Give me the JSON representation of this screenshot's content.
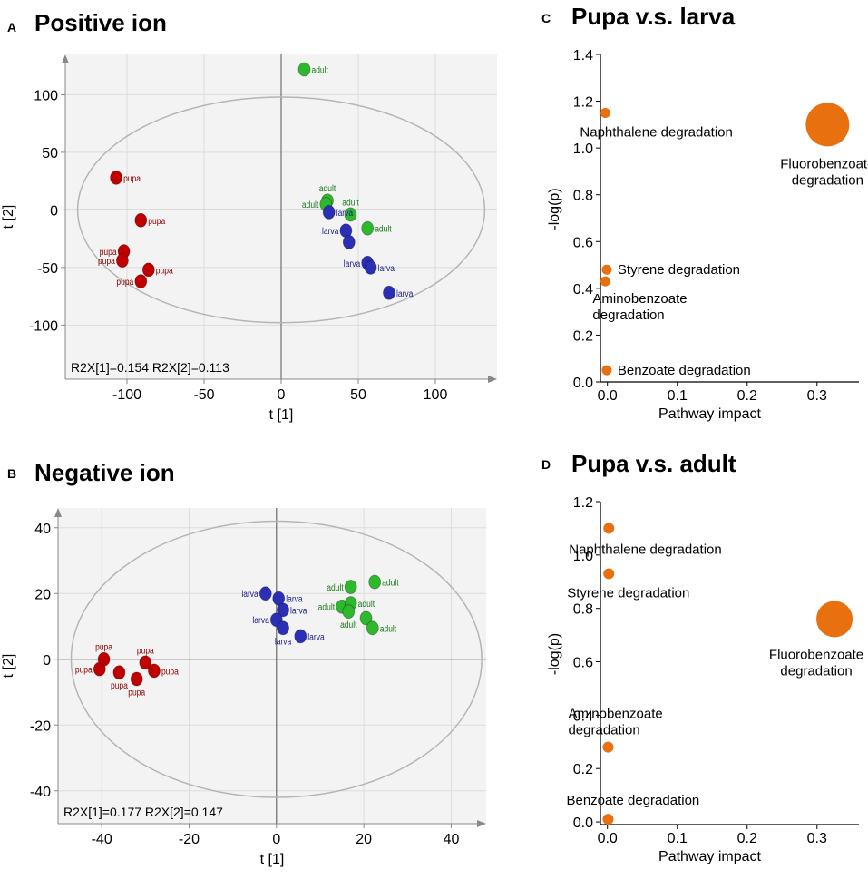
{
  "panels": {
    "a": {
      "letter": "A",
      "title": "Positive ion"
    },
    "b": {
      "letter": "B",
      "title": "Negative ion"
    },
    "c": {
      "letter": "C",
      "title": "Pupa v.s. larva"
    },
    "d": {
      "letter": "D",
      "title": "Pupa v.s. adult"
    }
  },
  "colors": {
    "pupa": "#c00000",
    "larva": "#2b2fb5",
    "adult": "#2db82d",
    "pathway": "#e8700e",
    "pupa_label": "#8b0000",
    "larva_label": "#1c1c88",
    "adult_label": "#1a7a1a"
  },
  "chart_data": [
    {
      "id": "a",
      "type": "scatter",
      "title": "Positive ion",
      "xlabel": "t [1]",
      "ylabel": "t [2]",
      "xlim": [
        -140,
        140
      ],
      "ylim": [
        -147,
        135
      ],
      "xticks": [
        -100,
        -50,
        0,
        50,
        100
      ],
      "yticks": [
        -100,
        -50,
        0,
        50,
        100
      ],
      "ellipse": {
        "rx": 132,
        "ry": 98
      },
      "annotation": "R2X[1]=0.154   R2X[2]=0.113",
      "points": [
        {
          "x": 15,
          "y": 122,
          "group": "adult",
          "label": "adult",
          "pos": "r"
        },
        {
          "x": 30,
          "y": 8,
          "group": "adult",
          "label": "adult",
          "pos": "t"
        },
        {
          "x": 29,
          "y": 5,
          "group": "adult",
          "label": "adult",
          "pos": "l"
        },
        {
          "x": 45,
          "y": -4,
          "group": "adult",
          "label": "adult",
          "pos": "t"
        },
        {
          "x": 56,
          "y": -16,
          "group": "adult",
          "label": "adult",
          "pos": "r"
        },
        {
          "x": 31,
          "y": -2,
          "group": "larva",
          "label": "larva",
          "pos": "r"
        },
        {
          "x": 42,
          "y": -18,
          "group": "larva",
          "label": "larva",
          "pos": "l"
        },
        {
          "x": 44,
          "y": -28,
          "group": "larva",
          "label": "",
          "pos": "l"
        },
        {
          "x": 56,
          "y": -46,
          "group": "larva",
          "label": "larva",
          "pos": "l"
        },
        {
          "x": 58,
          "y": -50,
          "group": "larva",
          "label": "larva",
          "pos": "r"
        },
        {
          "x": 70,
          "y": -72,
          "group": "larva",
          "label": "larva",
          "pos": "r"
        },
        {
          "x": -107,
          "y": 28,
          "group": "pupa",
          "label": "pupa",
          "pos": "r"
        },
        {
          "x": -91,
          "y": -9,
          "group": "pupa",
          "label": "pupa",
          "pos": "r"
        },
        {
          "x": -102,
          "y": -36,
          "group": "pupa",
          "label": "pupa",
          "pos": "l"
        },
        {
          "x": -103,
          "y": -44,
          "group": "pupa",
          "label": "pupa",
          "pos": "l"
        },
        {
          "x": -86,
          "y": -52,
          "group": "pupa",
          "label": "pupa",
          "pos": "r"
        },
        {
          "x": -91,
          "y": -62,
          "group": "pupa",
          "label": "pupa",
          "pos": "l"
        }
      ]
    },
    {
      "id": "b",
      "type": "scatter",
      "title": "Negative ion",
      "xlabel": "t [1]",
      "ylabel": "t [2]",
      "xlim": [
        -50,
        48
      ],
      "ylim": [
        -50,
        46
      ],
      "xticks": [
        -40,
        -20,
        0,
        20,
        40
      ],
      "yticks": [
        -40,
        -20,
        0,
        20,
        40
      ],
      "ellipse": {
        "rx": 47,
        "ry": 42
      },
      "annotation": "R2X[1]=0.177   R2X[2]=0.147",
      "points": [
        {
          "x": -2.5,
          "y": 20,
          "group": "larva",
          "label": "larva",
          "pos": "l"
        },
        {
          "x": 0.5,
          "y": 18.5,
          "group": "larva",
          "label": "larva",
          "pos": "r"
        },
        {
          "x": 1.5,
          "y": 15,
          "group": "larva",
          "label": "larva",
          "pos": "r"
        },
        {
          "x": 0,
          "y": 12,
          "group": "larva",
          "label": "larva",
          "pos": "l"
        },
        {
          "x": 1.5,
          "y": 9.5,
          "group": "larva",
          "label": "larva",
          "pos": "b"
        },
        {
          "x": 5.5,
          "y": 7,
          "group": "larva",
          "label": "larva",
          "pos": "r"
        },
        {
          "x": 17,
          "y": 22,
          "group": "adult",
          "label": "adult",
          "pos": "l"
        },
        {
          "x": 22.5,
          "y": 23.5,
          "group": "adult",
          "label": "adult",
          "pos": "r"
        },
        {
          "x": 15,
          "y": 16,
          "group": "adult",
          "label": "adult",
          "pos": "l"
        },
        {
          "x": 17,
          "y": 17,
          "group": "adult",
          "label": "adult",
          "pos": "r"
        },
        {
          "x": 16.5,
          "y": 14.5,
          "group": "adult",
          "label": "adult",
          "pos": "b"
        },
        {
          "x": 20.5,
          "y": 12.5,
          "group": "adult",
          "label": "",
          "pos": "r"
        },
        {
          "x": 22,
          "y": 9.5,
          "group": "adult",
          "label": "adult",
          "pos": "r"
        },
        {
          "x": -39.5,
          "y": 0,
          "group": "pupa",
          "label": "pupa",
          "pos": "t"
        },
        {
          "x": -40.5,
          "y": -3,
          "group": "pupa",
          "label": "pupa",
          "pos": "l"
        },
        {
          "x": -36,
          "y": -4,
          "group": "pupa",
          "label": "pupa",
          "pos": "b"
        },
        {
          "x": -30,
          "y": -1,
          "group": "pupa",
          "label": "pupa",
          "pos": "t"
        },
        {
          "x": -28,
          "y": -3.5,
          "group": "pupa",
          "label": "pupa",
          "pos": "r"
        },
        {
          "x": -32,
          "y": -6,
          "group": "pupa",
          "label": "pupa",
          "pos": "b"
        }
      ]
    },
    {
      "id": "c",
      "type": "scatter",
      "title": "Pupa v.s. larva",
      "xlabel": "Pathway impact",
      "ylabel": "-log(p)",
      "xlim": [
        -0.01,
        0.36
      ],
      "ylim": [
        0,
        1.4
      ],
      "xticks": [
        0.0,
        0.1,
        0.2,
        0.3
      ],
      "xtick_labels": [
        "0.0",
        "0.1",
        "0.2",
        "0.3"
      ],
      "yticks": [
        0.0,
        0.2,
        0.4,
        0.6,
        0.8,
        1.0,
        1.2,
        1.4
      ],
      "ytick_labels": [
        "0.0",
        "0.2",
        "0.4",
        "0.6",
        "0.8",
        "1.0",
        "1.2",
        "1.4"
      ],
      "points": [
        {
          "x": -0.003,
          "y": 1.15,
          "size": 5.5,
          "lines": [
            "Naphthalene degradation"
          ],
          "anchor": "start",
          "dx": -28,
          "dy": 26
        },
        {
          "x": 0.315,
          "y": 1.1,
          "size": 24,
          "lines": [
            "Fluorobenzoate",
            "degradation"
          ],
          "anchor": "middle",
          "dx": 0,
          "dy": 48
        },
        {
          "x": -0.001,
          "y": 0.48,
          "size": 5.5,
          "lines": [
            "Styrene degradation"
          ],
          "anchor": "start",
          "dx": 12,
          "dy": 5
        },
        {
          "x": -0.003,
          "y": 0.43,
          "size": 5.5,
          "lines": [
            "Aminobenzoate",
            "degradation"
          ],
          "anchor": "start",
          "dx": -14,
          "dy": 24
        },
        {
          "x": -0.001,
          "y": 0.05,
          "size": 5.5,
          "lines": [
            "Benzoate degradation"
          ],
          "anchor": "start",
          "dx": 12,
          "dy": 5
        }
      ]
    },
    {
      "id": "d",
      "type": "scatter",
      "title": "Pupa v.s. adult",
      "xlabel": "Pathway impact",
      "ylabel": "-log(p)",
      "xlim": [
        -0.01,
        0.36
      ],
      "ylim": [
        -0.01,
        1.2
      ],
      "xticks": [
        0.0,
        0.1,
        0.2,
        0.3
      ],
      "xtick_labels": [
        "0.0",
        "0.1",
        "0.2",
        "0.3"
      ],
      "yticks": [
        0.0,
        0.2,
        0.4,
        0.6,
        0.8,
        1.0,
        1.2
      ],
      "ytick_labels": [
        "0.0",
        "0.2",
        "0.4",
        "0.6",
        "0.8",
        "1.0",
        "1.2"
      ],
      "points": [
        {
          "x": 0.002,
          "y": 1.1,
          "size": 6,
          "lines": [
            "Naphthalene degradation"
          ],
          "anchor": "start",
          "dx": -44,
          "dy": 28
        },
        {
          "x": 0.002,
          "y": 0.93,
          "size": 6,
          "lines": [
            "Styrene degradation"
          ],
          "anchor": "start",
          "dx": -46,
          "dy": 26
        },
        {
          "x": 0.325,
          "y": 0.76,
          "size": 20,
          "lines": [
            "Fluorobenzoate",
            "degradation"
          ],
          "anchor": "middle",
          "dx": -20,
          "dy": 44
        },
        {
          "x": 0.001,
          "y": 0.28,
          "size": 6,
          "lines": [
            "Aminobenzoate",
            "degradation"
          ],
          "anchor": "start",
          "dx": -44,
          "dy": -32
        },
        {
          "x": 0.001,
          "y": 0.01,
          "size": 6,
          "lines": [
            "Benzoate degradation"
          ],
          "anchor": "start",
          "dx": -46,
          "dy": -16
        }
      ]
    }
  ]
}
